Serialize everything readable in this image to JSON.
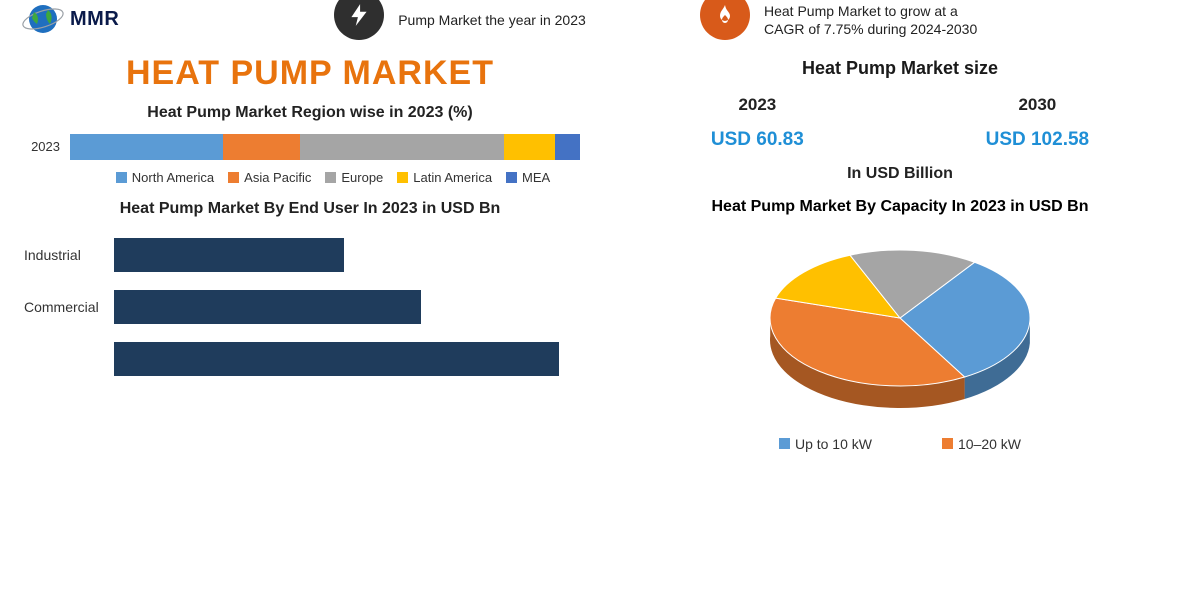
{
  "logo": {
    "text": "MMR",
    "globe_color": "#1f6fbf",
    "orbit_color": "#9aa0a6"
  },
  "stat_left": {
    "text": "Pump Market the year in 2023",
    "icon_bg": "#2f2f2f",
    "icon_fg": "#ffffff"
  },
  "stat_right": {
    "text_line1": "Heat Pump Market to grow at a",
    "text_line2": "CAGR of 7.75% during 2024-2030",
    "icon_bg": "#d85a1a",
    "icon_fg": "#ffffff"
  },
  "big_title": "HEAT PUMP MARKET",
  "region_chart": {
    "title": "Heat Pump Market Region wise in 2023 (%)",
    "ylabel": "2023",
    "segments": [
      {
        "label": "North America",
        "color": "#5b9bd5",
        "pct": 30
      },
      {
        "label": "Asia Pacific",
        "color": "#ed7d31",
        "pct": 15
      },
      {
        "label": "Europe",
        "color": "#a5a5a5",
        "pct": 40
      },
      {
        "label": "Latin America",
        "color": "#ffc000",
        "pct": 10
      },
      {
        "label": "MEA",
        "color": "#4472c4",
        "pct": 5
      }
    ]
  },
  "enduser_chart": {
    "title": "Heat Pump Market By End User In 2023 in USD Bn",
    "bar_color": "#1f3c5c",
    "xmax": 60,
    "rows": [
      {
        "label": "Industrial",
        "value": 30
      },
      {
        "label": "Commercial",
        "value": 40
      },
      {
        "label": "",
        "value": 58
      }
    ]
  },
  "market_size": {
    "title": "Heat Pump Market size",
    "unit": "In USD Billion",
    "cells": [
      {
        "year": "2023",
        "value": "USD 60.83",
        "color": "#1f8fd6"
      },
      {
        "year": "2030",
        "value": "USD 102.58",
        "color": "#1f8fd6"
      }
    ]
  },
  "capacity_pie": {
    "title": "Heat Pump Market By Capacity In 2023 in USD Bn",
    "slices": [
      {
        "label": "Up to 10 kW",
        "color": "#5b9bd5",
        "pct": 32
      },
      {
        "label": "10–20 kW",
        "color": "#ed7d31",
        "pct": 38
      },
      {
        "label": "",
        "color": "#ffc000",
        "pct": 14
      },
      {
        "label": "",
        "color": "#a5a5a5",
        "pct": 16
      }
    ],
    "base_color": "#d0d0d0"
  }
}
